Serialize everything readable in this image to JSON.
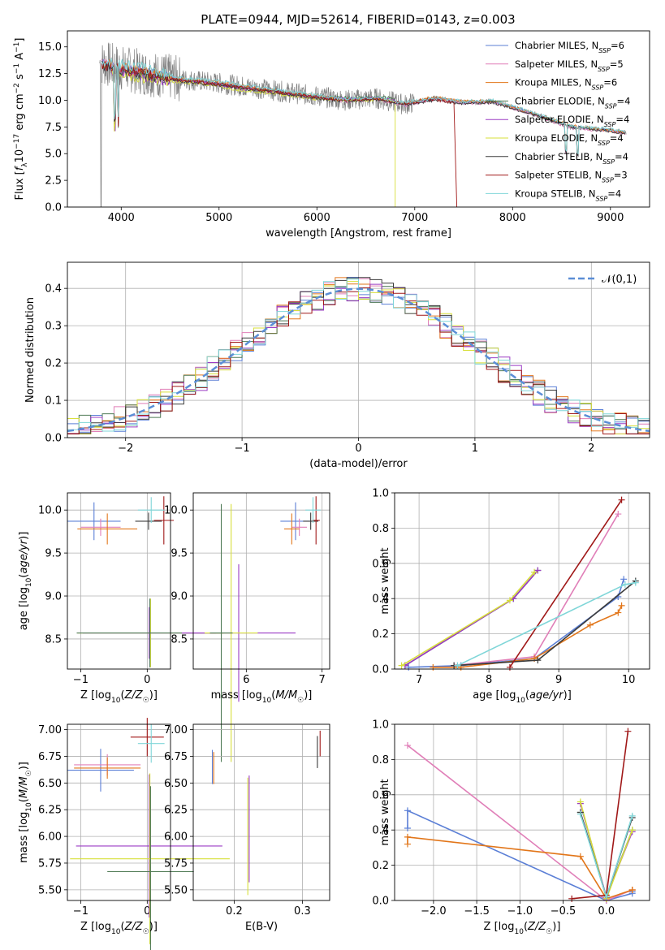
{
  "figure": {
    "title": "PLATE=0944, MJD=52614, FIBERID=0143, z=0.003"
  },
  "colors": {
    "Chabrier MILES": "#5b7fd6",
    "Salpeter MILES": "#e07fb8",
    "Kroupa MILES": "#e2761a",
    "Chabrier ELODIE": "#4f7a55",
    "Salpeter ELODIE": "#9b3bc4",
    "Kroupa ELODIE": "#d7df3a",
    "Chabrier STELIB": "#3a3a3a",
    "Salpeter STELIB": "#a01818",
    "Kroupa STELIB": "#7fd6d8",
    "data": "#808080",
    "gauss": "#5b8ed6"
  },
  "chart_data": [
    {
      "type": "line",
      "title": "PLATE=0944, MJD=52614, FIBERID=0143, z=0.003",
      "xlabel": "wavelength [Angstrom, rest frame]",
      "ylabel": "Flux [f_λ 10^-17 erg cm^-2 s^-1 A^-1]",
      "xlim": [
        3450,
        9400
      ],
      "ylim": [
        0,
        16.5
      ],
      "xticks": [
        4000,
        5000,
        6000,
        7000,
        8000,
        9000
      ],
      "yticks": [
        0.0,
        2.5,
        5.0,
        7.5,
        10.0,
        12.5,
        15.0
      ],
      "legend_position": "top-right",
      "series": [
        {
          "name": "Chabrier MILES, N_SSP=6",
          "x": [
            3800,
            4000,
            4300,
            4600,
            5000,
            5500,
            5900,
            6300,
            6600,
            6900,
            7200,
            7500,
            7800,
            8200,
            8600,
            9000,
            9150
          ],
          "y": [
            13.5,
            13.0,
            12.5,
            12.0,
            11.6,
            11.0,
            10.5,
            10.0,
            10.2,
            9.6,
            10.2,
            9.8,
            9.9,
            8.8,
            7.5,
            7.2,
            7.0
          ]
        },
        {
          "name": "Salpeter MILES, N_SSP=5",
          "x": [
            3800,
            4000,
            4300,
            4600,
            5000,
            5500,
            5900,
            6300,
            6600,
            6900,
            7200,
            7500,
            7800,
            8200,
            8600,
            9000,
            9150
          ],
          "y": [
            13.4,
            12.9,
            12.4,
            11.9,
            11.5,
            10.9,
            10.4,
            9.9,
            10.1,
            9.5,
            10.1,
            9.7,
            9.8,
            8.7,
            7.4,
            7.1,
            6.9
          ]
        },
        {
          "name": "Kroupa MILES, N_SSP=6",
          "x": [
            3800,
            4000,
            4300,
            4600,
            5000,
            5500,
            5900,
            6300,
            6600,
            6900,
            7200,
            7500,
            7800,
            8200,
            8600,
            9000,
            9150
          ],
          "y": [
            13.5,
            13.1,
            12.6,
            12.0,
            11.7,
            11.0,
            10.5,
            10.1,
            10.2,
            9.7,
            10.3,
            9.9,
            9.9,
            8.8,
            7.6,
            7.2,
            7.0
          ]
        },
        {
          "name": "Chabrier ELODIE, N_SSP=4",
          "x": [
            3900,
            4100,
            4400,
            4800,
            5200,
            5600,
            6000,
            6400,
            6700,
            6800
          ],
          "y": [
            12.8,
            12.5,
            12.0,
            11.8,
            11.2,
            10.8,
            10.3,
            10.2,
            10.3,
            10.0
          ]
        },
        {
          "name": "Salpeter ELODIE, N_SSP=4",
          "x": [
            3900,
            4100,
            4400,
            4800,
            5200,
            5600,
            6000,
            6400,
            6700,
            6800
          ],
          "y": [
            12.7,
            12.4,
            11.9,
            11.7,
            11.1,
            10.7,
            10.2,
            10.1,
            10.2,
            9.9
          ]
        },
        {
          "name": "Kroupa ELODIE, N_SSP=4",
          "x": [
            3900,
            4100,
            4400,
            4800,
            5200,
            5600,
            6000,
            6400,
            6700,
            6800
          ],
          "y": [
            12.6,
            12.3,
            11.8,
            11.6,
            11.0,
            10.6,
            10.1,
            10.0,
            10.1,
            9.8
          ]
        },
        {
          "name": "Chabrier STELIB, N_SSP=4",
          "x": [
            3800,
            4000,
            4300,
            4600,
            5000,
            5500,
            5900,
            6300,
            6600,
            6900,
            7200,
            7500,
            7800,
            8200,
            8600,
            9000,
            9150
          ],
          "y": [
            13.2,
            12.8,
            12.3,
            11.8,
            11.4,
            10.8,
            10.3,
            9.9,
            10.1,
            9.6,
            10.0,
            9.7,
            9.8,
            8.7,
            7.5,
            7.1,
            6.9
          ]
        },
        {
          "name": "Salpeter STELIB, N_SSP=3",
          "x": [
            3800,
            4000,
            4300,
            4600,
            5000,
            5500,
            5900,
            6300,
            6600,
            6900,
            7200,
            7400
          ],
          "y": [
            13.3,
            12.9,
            12.4,
            11.9,
            11.5,
            10.9,
            10.4,
            10.0,
            10.2,
            9.7,
            10.1,
            9.8
          ]
        },
        {
          "name": "Kroupa STELIB, N_SSP=4",
          "x": [
            3800,
            4000,
            4300,
            4600,
            5000,
            5500,
            5900,
            6300,
            6600,
            6900,
            7200,
            7500,
            7800,
            8200,
            8600,
            9000,
            9150
          ],
          "y": [
            13.8,
            13.4,
            12.9,
            12.1,
            11.8,
            11.1,
            10.6,
            10.1,
            10.3,
            9.8,
            10.2,
            9.9,
            10.0,
            8.9,
            7.6,
            7.3,
            7.1
          ]
        }
      ]
    },
    {
      "type": "histogram",
      "xlabel": "(data-model)/error",
      "ylabel": "Normed distribution",
      "xlim": [
        -2.5,
        2.5
      ],
      "ylim": [
        0,
        0.47
      ],
      "xticks": [
        -2,
        -1,
        0,
        1,
        2
      ],
      "yticks": [
        0.0,
        0.1,
        0.2,
        0.3,
        0.4
      ],
      "grid": true,
      "legend": "𝒩(0,1)",
      "legend_position": "top-right",
      "bin_width": 0.1,
      "bin_start": -2.5,
      "gaussian": {
        "mean": 0,
        "sigma": 1
      }
    },
    {
      "type": "errorbar",
      "xlabel": "Z [log10(Z/Z☉)]",
      "ylabel": "age  [log10(age/yr)]",
      "xlim": [
        -1.2,
        0.35
      ],
      "ylim": [
        8.15,
        10.2
      ],
      "xticks": [
        -1,
        0
      ],
      "yticks": [
        8.5,
        9.0,
        9.5,
        10.0
      ],
      "points": [
        {
          "model": "Chabrier MILES",
          "x": -0.8,
          "y": 9.87,
          "xerr": 0.4,
          "yerr": 0.22
        },
        {
          "model": "Salpeter MILES",
          "x": -0.7,
          "y": 9.8,
          "xerr": 0.3,
          "yerr": 0.1
        },
        {
          "model": "Kroupa MILES",
          "x": -0.6,
          "y": 9.78,
          "xerr": 0.45,
          "yerr": 0.18
        },
        {
          "model": "Chabrier STELIB",
          "x": 0.02,
          "y": 9.87,
          "xerr": 0.2,
          "yerr": 0.1
        },
        {
          "model": "Salpeter STELIB",
          "x": 0.25,
          "y": 9.88,
          "xerr": 0.15,
          "yerr": 0.28
        },
        {
          "model": "Kroupa STELIB",
          "x": 0.06,
          "y": 10.0,
          "xerr": 0.2,
          "yerr": 0.15
        },
        {
          "model": "Kroupa ELODIE",
          "x": 0.05,
          "y": 8.57,
          "xerr": 1.1,
          "yerr": 0.4
        },
        {
          "model": "Salpeter ELODIE",
          "x": 0.03,
          "y": 8.57,
          "xerr": 1.0,
          "yerr": 0.3
        },
        {
          "model": "Chabrier ELODIE",
          "x": 0.04,
          "y": 8.57,
          "xerr": 1.1,
          "yerr": 0.4
        }
      ]
    },
    {
      "type": "errorbar",
      "xlabel": "mass [log10(M/M☉)]",
      "xlim": [
        5.3,
        7.1
      ],
      "ylim": [
        8.15,
        10.2
      ],
      "xticks": [
        5,
        6,
        7
      ],
      "yticks": [
        8.5,
        9.0,
        9.5,
        10.0
      ],
      "points": [
        {
          "model": "Chabrier MILES",
          "x": 6.65,
          "y": 9.87,
          "xerr": 0.2,
          "yerr": 0.22
        },
        {
          "model": "Salpeter MILES",
          "x": 6.7,
          "y": 9.8,
          "xerr": 0.1,
          "yerr": 0.1
        },
        {
          "model": "Kroupa MILES",
          "x": 6.6,
          "y": 9.78,
          "xerr": 0.1,
          "yerr": 0.18
        },
        {
          "model": "Chabrier STELIB",
          "x": 6.85,
          "y": 9.87,
          "xerr": 0.1,
          "yerr": 0.1
        },
        {
          "model": "Salpeter STELIB",
          "x": 6.92,
          "y": 9.88,
          "xerr": 0.05,
          "yerr": 0.28
        },
        {
          "model": "Kroupa STELIB",
          "x": 6.88,
          "y": 10.0,
          "xerr": 0.1,
          "yerr": 0.15
        },
        {
          "model": "Salpeter ELODIE",
          "x": 5.9,
          "y": 8.57,
          "xerr": 0.75,
          "yerr": 0.8
        },
        {
          "model": "Kroupa ELODIE",
          "x": 5.8,
          "y": 8.57,
          "xerr": 0.35,
          "yerr": 1.5
        },
        {
          "model": "Chabrier ELODIE",
          "x": 5.67,
          "y": 8.57,
          "xerr": 0.15,
          "yerr": 1.5
        }
      ]
    },
    {
      "type": "line",
      "xlabel": "age  [log10(age/yr)]",
      "ylabel": "mass weight",
      "xlim": [
        6.65,
        10.3
      ],
      "ylim": [
        0,
        1.0
      ],
      "xticks": [
        7,
        8,
        9,
        10
      ],
      "yticks": [
        0.0,
        0.2,
        0.4,
        0.6,
        0.8,
        1.0
      ],
      "grid": true,
      "series": [
        {
          "model": "Chabrier MILES",
          "x": [
            6.85,
            7.6,
            8.65,
            9.85,
            9.93
          ],
          "y": [
            0.01,
            0.02,
            0.06,
            0.41,
            0.51
          ]
        },
        {
          "model": "Salpeter MILES",
          "x": [
            7.5,
            8.65,
            9.85
          ],
          "y": [
            0.02,
            0.07,
            0.88
          ]
        },
        {
          "model": "Kroupa MILES",
          "x": [
            7.2,
            7.6,
            8.65,
            9.45,
            9.85,
            9.9
          ],
          "y": [
            0.01,
            0.01,
            0.06,
            0.25,
            0.32,
            0.36
          ]
        },
        {
          "model": "Chabrier ELODIE",
          "x": [
            6.8,
            8.35,
            8.7
          ],
          "y": [
            0.02,
            0.4,
            0.56
          ]
        },
        {
          "model": "Salpeter ELODIE",
          "x": [
            6.8,
            8.35,
            8.7
          ],
          "y": [
            0.02,
            0.4,
            0.56
          ]
        },
        {
          "model": "Kroupa ELODIE",
          "x": [
            6.75,
            8.3,
            8.65
          ],
          "y": [
            0.02,
            0.39,
            0.55
          ]
        },
        {
          "model": "Chabrier STELIB",
          "x": [
            7.5,
            8.7,
            10.1
          ],
          "y": [
            0.02,
            0.05,
            0.5
          ]
        },
        {
          "model": "Salpeter STELIB",
          "x": [
            8.3,
            9.9
          ],
          "y": [
            0.01,
            0.96
          ]
        },
        {
          "model": "Kroupa STELIB",
          "x": [
            7.55,
            9.95,
            10.1
          ],
          "y": [
            0.02,
            0.48,
            0.49
          ]
        }
      ]
    },
    {
      "type": "errorbar",
      "xlabel": "Z [log10(Z/Z☉)]",
      "ylabel": "mass [log10(M/M☉)]",
      "xlim": [
        -1.2,
        0.35
      ],
      "ylim": [
        5.4,
        7.05
      ],
      "xticks": [
        -1,
        0
      ],
      "yticks": [
        5.5,
        5.75,
        6.0,
        6.25,
        6.5,
        6.75,
        7.0
      ],
      "points": [
        {
          "model": "Chabrier MILES",
          "x": -0.7,
          "y": 6.62,
          "xerr": 0.5,
          "yerr": 0.2
        },
        {
          "model": "Salpeter MILES",
          "x": -0.6,
          "y": 6.67,
          "xerr": 0.5,
          "yerr": 0.1
        },
        {
          "model": "Kroupa MILES",
          "x": -0.6,
          "y": 6.64,
          "xerr": 0.5,
          "yerr": 0.1
        },
        {
          "model": "Salpeter STELIB",
          "x": 0.0,
          "y": 6.93,
          "xerr": 0.25,
          "yerr": 0.18
        },
        {
          "model": "Kroupa STELIB",
          "x": 0.06,
          "y": 6.87,
          "xerr": 0.2,
          "yerr": 0.18
        },
        {
          "model": "Salpeter ELODIE",
          "x": 0.03,
          "y": 5.91,
          "xerr": 1.1,
          "yerr": 0.67
        },
        {
          "model": "Kroupa ELODIE",
          "x": 0.04,
          "y": 5.79,
          "xerr": 1.2,
          "yerr": 0.8
        },
        {
          "model": "Chabrier ELODIE",
          "x": 0.05,
          "y": 5.67,
          "xerr": 0.65,
          "yerr": 0.8
        }
      ]
    },
    {
      "type": "errorbar",
      "xlabel": "E(B-V)",
      "xlim": [
        0.14,
        0.34
      ],
      "ylim": [
        5.4,
        7.05
      ],
      "xticks": [
        0.2,
        0.3
      ],
      "yticks": [
        5.5,
        5.75,
        6.0,
        6.25,
        6.5,
        6.75,
        7.0
      ],
      "points": [
        {
          "model": "Chabrier MILES",
          "x": 0.168,
          "y": 6.65,
          "yerr": 0.16
        },
        {
          "model": "Kroupa MILES",
          "x": 0.17,
          "y": 6.64,
          "yerr": 0.15
        },
        {
          "model": "Salpeter ELODIE",
          "x": 0.222,
          "y": 6.07,
          "yerr": 0.5
        },
        {
          "model": "Kroupa ELODIE",
          "x": 0.22,
          "y": 6.0,
          "yerr": 0.55
        },
        {
          "model": "Chabrier STELIB",
          "x": 0.322,
          "y": 6.79,
          "yerr": 0.15
        },
        {
          "model": "Salpeter STELIB",
          "x": 0.326,
          "y": 6.87,
          "yerr": 0.12
        }
      ]
    },
    {
      "type": "line",
      "xlabel": "Z [log10(Z/Z☉)]",
      "ylabel": "mass weight",
      "xlim": [
        -2.45,
        0.5
      ],
      "ylim": [
        0,
        1.0
      ],
      "xticks": [
        -2.0,
        -1.5,
        -1.0,
        -0.5,
        0.0
      ],
      "yticks": [
        0.0,
        0.2,
        0.4,
        0.6,
        0.8,
        1.0
      ],
      "grid": true,
      "series": [
        {
          "model": "Chabrier MILES",
          "x": [
            -2.3,
            -2.3,
            0.0,
            0.3,
            0.3
          ],
          "y": [
            0.41,
            0.51,
            0.0,
            0.04,
            0.05
          ]
        },
        {
          "model": "Salpeter MILES",
          "x": [
            -2.3,
            0.0,
            0.3
          ],
          "y": [
            0.88,
            0.0,
            0.06
          ]
        },
        {
          "model": "Kroupa MILES",
          "x": [
            -2.3,
            -2.3,
            -0.3,
            0.0,
            0.3,
            0.3
          ],
          "y": [
            0.32,
            0.36,
            0.25,
            0.01,
            0.06,
            0.06
          ]
        },
        {
          "model": "Chabrier ELODIE",
          "x": [
            -0.3,
            0.0,
            0.3
          ],
          "y": [
            0.5,
            0.02,
            0.4
          ]
        },
        {
          "model": "Salpeter ELODIE",
          "x": [
            -0.3,
            0.0,
            0.3
          ],
          "y": [
            0.55,
            0.02,
            0.39
          ]
        },
        {
          "model": "Kroupa ELODIE",
          "x": [
            -0.3,
            0.0,
            0.3
          ],
          "y": [
            0.56,
            0.01,
            0.4
          ]
        },
        {
          "model": "Chabrier STELIB",
          "x": [
            -0.3,
            0.0,
            0.3
          ],
          "y": [
            0.5,
            0.02,
            0.47
          ]
        },
        {
          "model": "Salpeter STELIB",
          "x": [
            -0.4,
            0.0,
            0.25
          ],
          "y": [
            0.01,
            0.03,
            0.96
          ]
        },
        {
          "model": "Kroupa STELIB",
          "x": [
            -0.3,
            0.0,
            0.3
          ],
          "y": [
            0.49,
            0.02,
            0.48
          ]
        }
      ]
    }
  ]
}
